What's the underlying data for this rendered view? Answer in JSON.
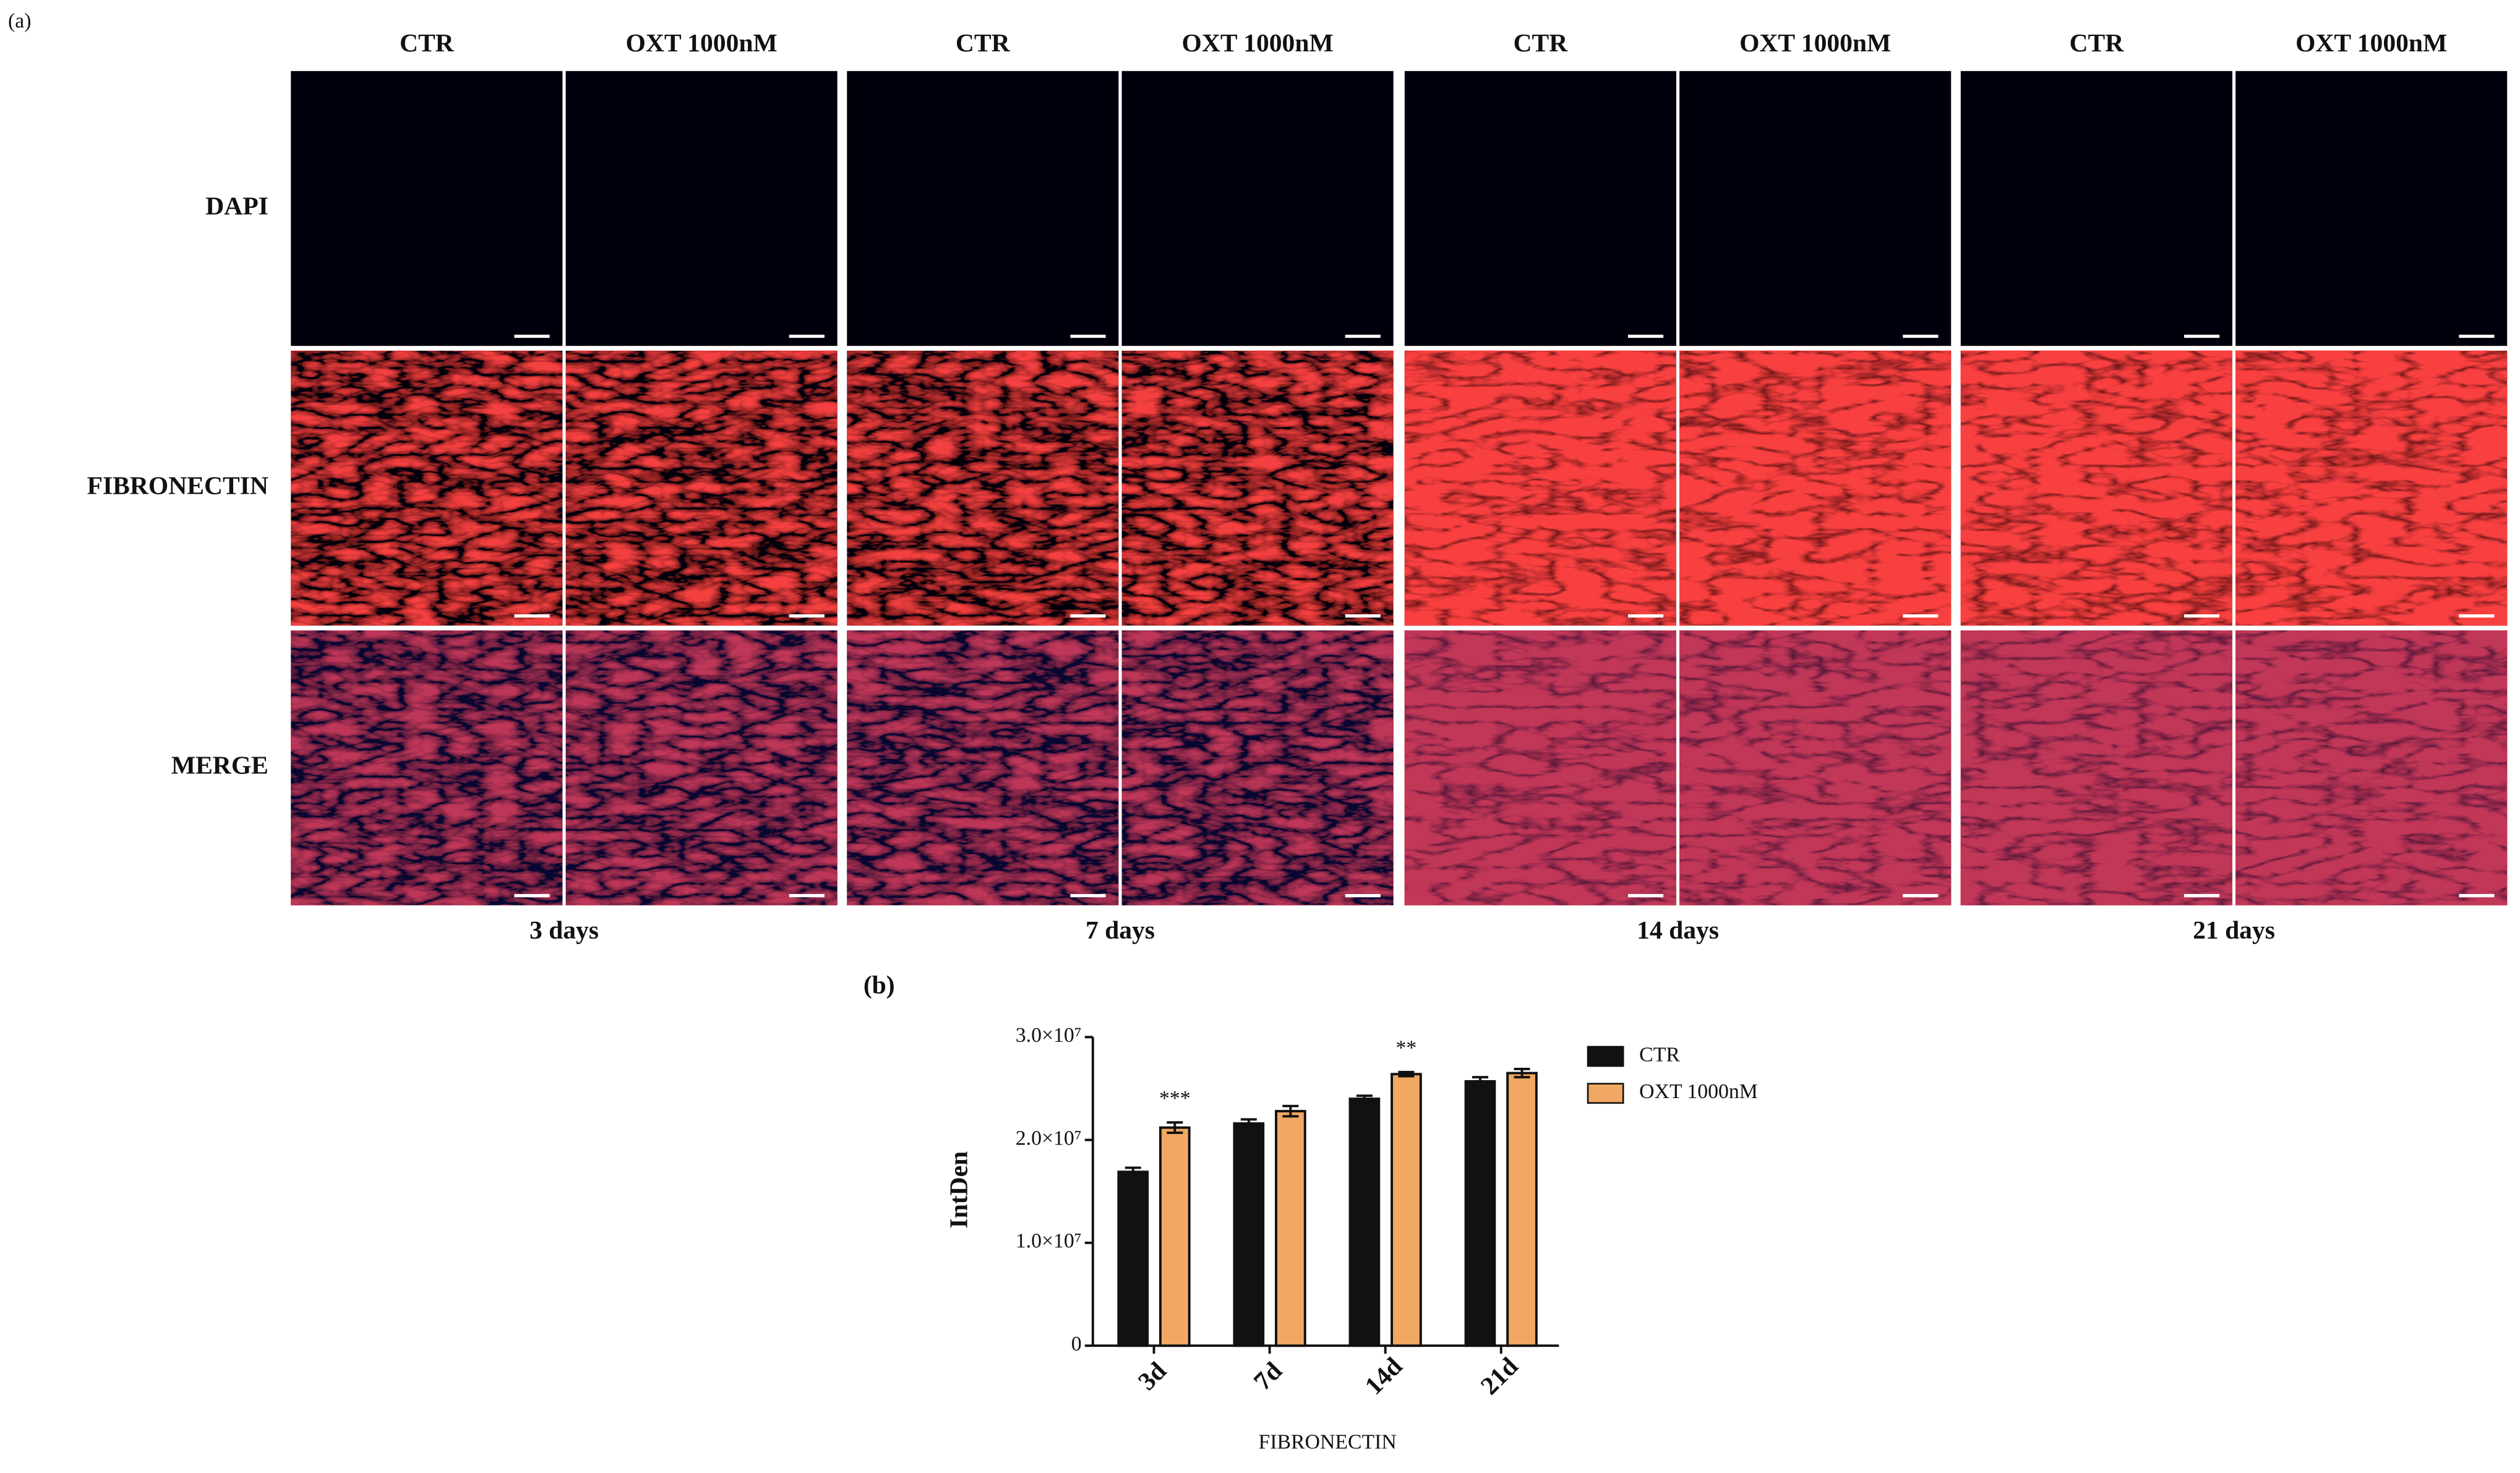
{
  "figure": {
    "panel_a": {
      "label": "(a)",
      "columns": [
        "CTR",
        "OXT 1000nM",
        "CTR",
        "OXT 1000nM",
        "CTR",
        "OXT 1000nM",
        "CTR",
        "OXT 1000nM"
      ],
      "rows": [
        "DAPI",
        "FIBRONECTIN",
        "MERGE"
      ],
      "times": [
        "3 days",
        "7 days",
        "14 days",
        "21 days"
      ]
    },
    "panel_b": {
      "label": "(b)"
    }
  },
  "chart_data": {
    "type": "bar",
    "ylabel": "IntDen",
    "xlabel": "FIBRONECTIN",
    "categories": [
      "3d",
      "7d",
      "14d",
      "21d"
    ],
    "series": [
      {
        "name": "CTR",
        "color": "#111111",
        "values": [
          16900000,
          21600000,
          24000000,
          25700000
        ],
        "errors": [
          400000,
          400000,
          300000,
          400000
        ]
      },
      {
        "name": "OXT 1000nM",
        "color": "#f0a862",
        "values": [
          21200000,
          22800000,
          26400000,
          26500000
        ],
        "errors": [
          500000,
          500000,
          200000,
          400000
        ]
      }
    ],
    "ylim": [
      0,
      30000000
    ],
    "yticks": [
      0,
      {
        "value": 10000000,
        "label": "1.0×10⁷"
      },
      {
        "value": 20000000,
        "label": "2.0×10⁷"
      },
      {
        "value": 30000000,
        "label": "3.0×10⁷"
      }
    ],
    "annotations": [
      {
        "text": "***",
        "category": "3d"
      },
      {
        "text": "**",
        "category": "14d"
      }
    ],
    "legend": "upper right"
  }
}
